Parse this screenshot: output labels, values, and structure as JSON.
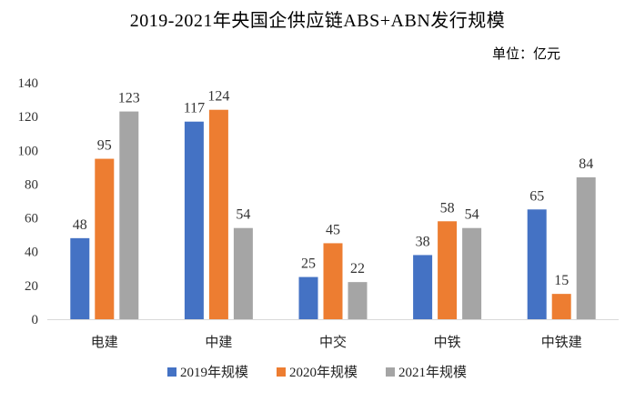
{
  "chart_data": {
    "type": "bar",
    "title": "2019-2021年央国企供应链ABS+ABN发行规模",
    "unit": "单位：亿元",
    "categories": [
      "电建",
      "中建",
      "中交",
      "中铁",
      "中铁建"
    ],
    "series": [
      {
        "name": "2019年规模",
        "color": "#4472C4",
        "values": [
          48,
          117,
          25,
          38,
          65
        ]
      },
      {
        "name": "2020年规模",
        "color": "#ED7D31",
        "values": [
          95,
          124,
          45,
          58,
          15
        ]
      },
      {
        "name": "2021年规模",
        "color": "#A5A5A5",
        "values": [
          123,
          54,
          22,
          54,
          84
        ]
      }
    ],
    "yticks": [
      0,
      20,
      40,
      60,
      80,
      100,
      120,
      140
    ],
    "ylim": [
      0,
      140
    ],
    "legend_position": "bottom",
    "grid": false
  }
}
